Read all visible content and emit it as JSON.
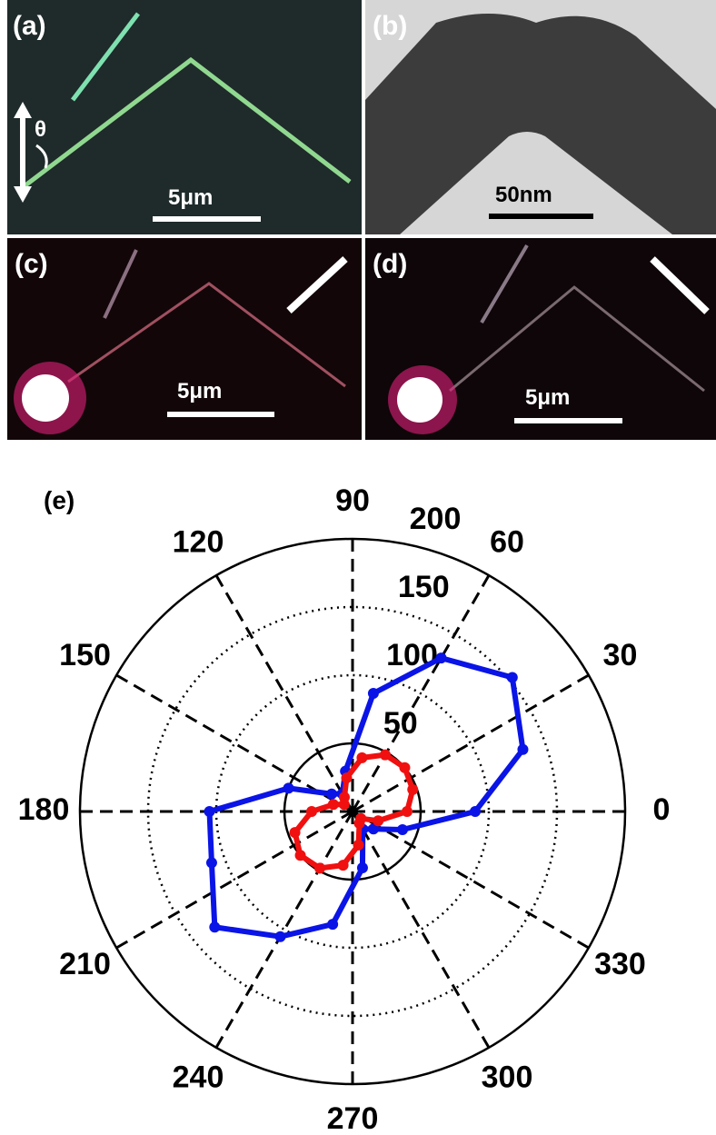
{
  "panels": [
    {
      "label": "(a)",
      "scale_bar": "5μm",
      "angle_label": "θ"
    },
    {
      "label": "(b)",
      "scale_bar": "50nm"
    },
    {
      "label": "(c)",
      "scale_bar": "5μm"
    },
    {
      "label": "(d)",
      "scale_bar": "5μm"
    }
  ],
  "chart_data": {
    "type": "polar",
    "title": "(e)",
    "theta": [
      0,
      20,
      40,
      60,
      80,
      100,
      120,
      140,
      160,
      180,
      200,
      220,
      240,
      260,
      280,
      300,
      320,
      340
    ],
    "series": [
      {
        "color": "#0a14e6",
        "values": [
          90,
          133,
          153,
          130,
          88,
          30,
          15,
          20,
          50,
          105,
          110,
          132,
          106,
          84,
          42,
          15,
          20,
          39
        ]
      },
      {
        "color": "#f01010",
        "values": [
          40,
          47,
          50,
          48,
          40,
          25,
          12,
          8,
          15,
          30,
          45,
          50,
          48,
          40,
          25,
          10,
          8,
          20
        ]
      }
    ],
    "rlim": [
      0,
      200
    ],
    "rticks": [
      50,
      100,
      150,
      200
    ],
    "thetaticks": [
      0,
      30,
      60,
      90,
      120,
      150,
      180,
      210,
      240,
      270,
      300,
      330
    ]
  }
}
